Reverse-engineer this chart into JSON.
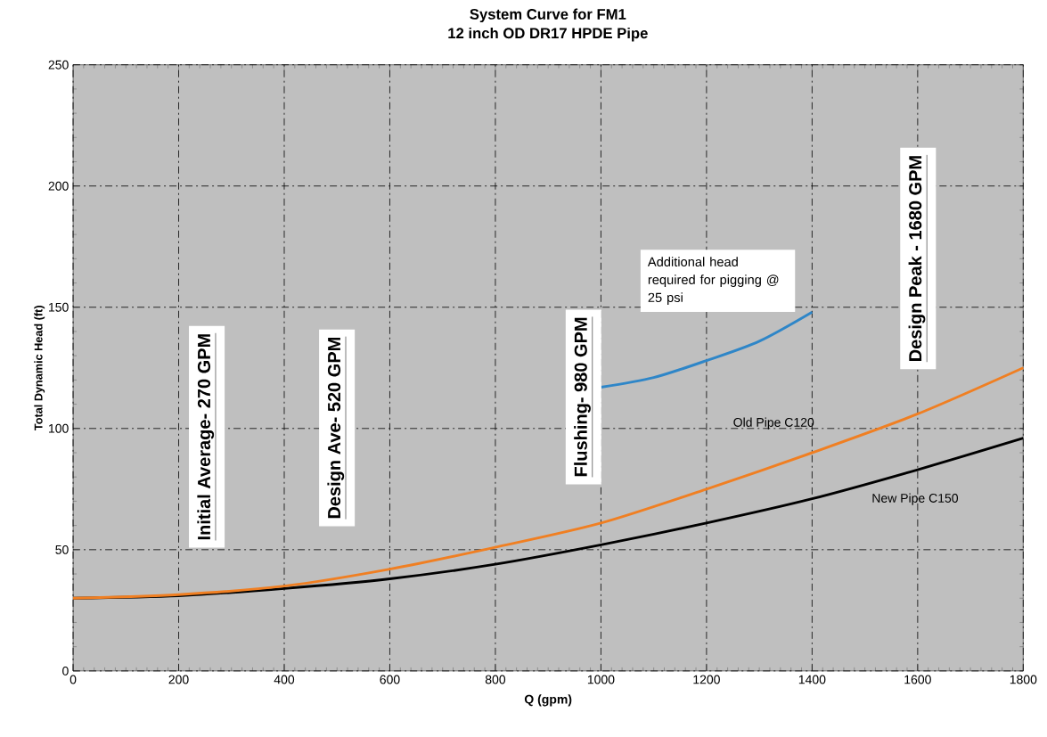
{
  "chart_data": {
    "type": "line",
    "title": "System Curve for FM1",
    "subtitle": "12 inch OD DR17 HPDE Pipe",
    "xlabel": "Q (gpm)",
    "ylabel": "Total Dynamic Head (ft)",
    "x": [
      0,
      200,
      400,
      600,
      800,
      1000,
      1200,
      1400,
      1600,
      1800
    ],
    "series": [
      {
        "color": "#000000",
        "values": [
          30,
          31,
          34,
          38,
          44,
          52,
          61,
          71,
          83,
          96
        ]
      },
      {
        "color": "#f07f22",
        "values": [
          30,
          31.5,
          35,
          42,
          51,
          61,
          75,
          90,
          106,
          125
        ]
      },
      {
        "color": "#2e86c8",
        "x": [
          1000,
          1100,
          1200,
          1300,
          1400
        ],
        "values": [
          117,
          121,
          128,
          136,
          148
        ]
      }
    ],
    "xlim": [
      0,
      1800
    ],
    "ylim": [
      0,
      250
    ],
    "xticks": [
      0,
      200,
      400,
      600,
      800,
      1000,
      1200,
      1400,
      1600,
      1800
    ],
    "yticks": [
      0,
      50,
      100,
      150,
      200,
      250
    ],
    "grid": true,
    "line_style": "solid",
    "marker": "none",
    "annotations": [
      "Initial Average- 270 GPM",
      "Design Ave- 520 GPM",
      "Flushing- 980 GPM",
      "Design Peak - 1680 GPM",
      "Additional head required for pigging @ 25 psi",
      "Old Pipe C120",
      "New Pipe C150"
    ]
  }
}
